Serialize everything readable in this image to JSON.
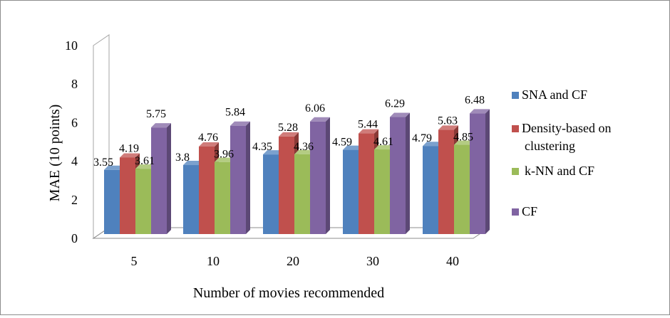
{
  "chart_data": {
    "type": "bar",
    "title": "",
    "xlabel": "Number of movies recommended",
    "ylabel": "MAE (10 points)",
    "categories": [
      "5",
      "10",
      "20",
      "30",
      "40"
    ],
    "ylim": [
      0,
      10
    ],
    "yticks": [
      "0",
      "2",
      "4",
      "6",
      "8",
      "10"
    ],
    "grid": false,
    "legend_position": "right",
    "series": [
      {
        "name": "SNA and CF",
        "color": "#4f81bd",
        "values": [
          3.55,
          3.8,
          4.35,
          4.59,
          4.79
        ],
        "labels": [
          "3.55",
          "3.8",
          "4.35",
          "4.59",
          "4.79"
        ]
      },
      {
        "name": "Density-based on clustering",
        "color": "#c0504d",
        "values": [
          4.19,
          4.76,
          5.28,
          5.44,
          5.63
        ],
        "labels": [
          "4.19",
          "4.76",
          "5.28",
          "5.44",
          "5.63"
        ]
      },
      {
        "name": "k-NN and CF",
        "color": "#9bbb59",
        "values": [
          3.61,
          3.96,
          4.36,
          4.61,
          4.85
        ],
        "labels": [
          "3.61",
          "3.96",
          "4.36",
          "4.61",
          "4.85"
        ]
      },
      {
        "name": "CF",
        "color": "#8064a2",
        "values": [
          5.75,
          5.84,
          6.06,
          6.29,
          6.48
        ],
        "labels": [
          "5.75",
          "5.84",
          "6.06",
          "6.29",
          "6.48"
        ]
      }
    ]
  }
}
